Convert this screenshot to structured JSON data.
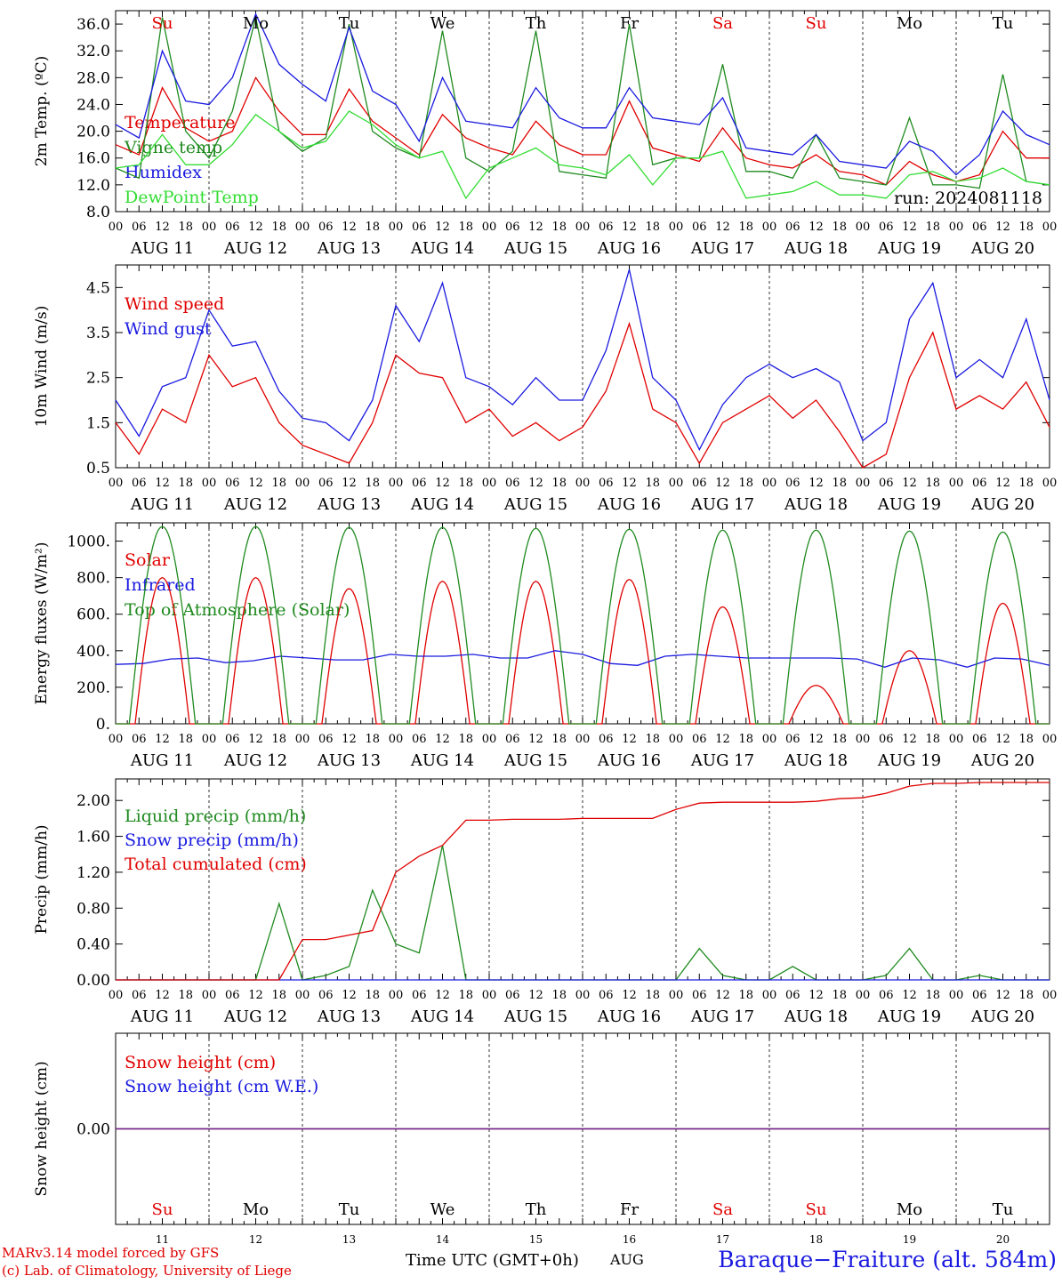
{
  "colors": {
    "red": "#e00000",
    "green": "#1f8a1f",
    "blue": "#1a1ae0",
    "lightgreen": "#33dd33",
    "purple": "#7a2a8a"
  },
  "x_axis": {
    "hour_labels": [
      "00",
      "06",
      "12",
      "18"
    ],
    "day_labels": [
      "AUG 11",
      "AUG 12",
      "AUG 13",
      "AUG 14",
      "AUG 15",
      "AUG 16",
      "AUG 17",
      "AUG 18",
      "AUG 19",
      "AUG 20"
    ],
    "last_label": "00"
  },
  "weekdays": [
    {
      "label": "Su",
      "color": "#e00000"
    },
    {
      "label": "Mo",
      "color": "#000000"
    },
    {
      "label": "Tu",
      "color": "#000000"
    },
    {
      "label": "We",
      "color": "#000000"
    },
    {
      "label": "Th",
      "color": "#000000"
    },
    {
      "label": "Fr",
      "color": "#000000"
    },
    {
      "label": "Sa",
      "color": "#e00000"
    },
    {
      "label": "Su",
      "color": "#e00000"
    },
    {
      "label": "Mo",
      "color": "#000000"
    },
    {
      "label": "Tu",
      "color": "#000000"
    }
  ],
  "day_numbers": [
    "11",
    "12",
    "13",
    "14",
    "15",
    "16",
    "17",
    "18",
    "19",
    "20"
  ],
  "footer": {
    "model": "MARv3.14 model forced by GFS",
    "lab": "(c) Lab. of Climatology, University of Liege",
    "time_label": "Time UTC (GMT+0h)",
    "month": "AUG",
    "station": "Baraque−Fraiture (alt. 584m)"
  },
  "chart_data": [
    {
      "type": "line",
      "ylabel": "2m Temp. (ºC)",
      "ylim": [
        8,
        38
      ],
      "ticks": [
        "8.0",
        "12.0",
        "16.0",
        "20.0",
        "24.0",
        "28.0",
        "32.0",
        "36.0"
      ],
      "annotation": "run: 2024081118",
      "x_hours": [
        0,
        6,
        12,
        18,
        24,
        30,
        36,
        42,
        48,
        54,
        60,
        66,
        72,
        78,
        84,
        90,
        96,
        102,
        108,
        114,
        120,
        126,
        132,
        138,
        144,
        150,
        156,
        162,
        168,
        174,
        180,
        186,
        192,
        198,
        204,
        210,
        216,
        222,
        228,
        234,
        240
      ],
      "series": [
        {
          "name": "Temperature",
          "color": "#e00000",
          "values": [
            18,
            16.5,
            26.5,
            20.5,
            18.5,
            20,
            28,
            23,
            19.5,
            19.5,
            26.3,
            21.5,
            19,
            16.5,
            22.5,
            19,
            17.5,
            16.5,
            21.5,
            18,
            16.5,
            16.5,
            24.5,
            17.5,
            16.5,
            15.5,
            20.5,
            16,
            15,
            14.5,
            16.5,
            14,
            13.5,
            12,
            15.5,
            13.5,
            12.5,
            13.5,
            20,
            16,
            16
          ]
        },
        {
          "name": "Vigne temp",
          "color": "#1f8a1f",
          "values": [
            14.5,
            13,
            37,
            20,
            16,
            23,
            37,
            20,
            17,
            19,
            36,
            20,
            17.5,
            16,
            35,
            16,
            14,
            17,
            35,
            14,
            13.5,
            13,
            36,
            15,
            16,
            16,
            30,
            14,
            14,
            13,
            19.5,
            13,
            12.5,
            12,
            22,
            12,
            12,
            11.5,
            28.5,
            12.5,
            12
          ]
        },
        {
          "name": "Humidex",
          "color": "#1a1ae0",
          "values": [
            21,
            19,
            32,
            24.5,
            24,
            28,
            37.5,
            30,
            27,
            24.5,
            35.5,
            26,
            24,
            18.5,
            28,
            21.5,
            21,
            20.5,
            26.5,
            22,
            20.5,
            20.5,
            26.5,
            22,
            21.5,
            21,
            25,
            17.5,
            17,
            16.5,
            19.5,
            15.5,
            15,
            14.5,
            18.5,
            17,
            13.5,
            16.5,
            23,
            19.5,
            18
          ]
        },
        {
          "name": "DewPoint Temp",
          "color": "#33dd33",
          "values": [
            14.5,
            15,
            19.5,
            15,
            15,
            18,
            22.5,
            20,
            17.5,
            18.5,
            23,
            21,
            18,
            16,
            17,
            10,
            14.5,
            16,
            17.5,
            15,
            14.5,
            13.5,
            16.5,
            12,
            16,
            16,
            17,
            10,
            10.5,
            11,
            12.5,
            10.5,
            10.5,
            10,
            13.5,
            14,
            12.5,
            13,
            14.5,
            12.5,
            12
          ]
        }
      ]
    },
    {
      "type": "line",
      "ylabel": "10m Wind (m/s)",
      "ylim": [
        0.5,
        5.0
      ],
      "ticks": [
        "0.5",
        "1.5",
        "2.5",
        "3.5",
        "4.5"
      ],
      "x_hours": [
        0,
        6,
        12,
        18,
        24,
        30,
        36,
        42,
        48,
        54,
        60,
        66,
        72,
        78,
        84,
        90,
        96,
        102,
        108,
        114,
        120,
        126,
        132,
        138,
        144,
        150,
        156,
        162,
        168,
        174,
        180,
        186,
        192,
        198,
        204,
        210,
        216,
        222,
        228,
        234,
        240
      ],
      "series": [
        {
          "name": "Wind speed",
          "color": "#e00000",
          "values": [
            1.5,
            0.8,
            1.8,
            1.5,
            3,
            2.3,
            2.5,
            1.5,
            1,
            0.8,
            0.6,
            1.5,
            3,
            2.6,
            2.5,
            1.5,
            1.8,
            1.2,
            1.5,
            1.1,
            1.4,
            2.2,
            3.7,
            1.8,
            1.5,
            0.6,
            1.5,
            1.8,
            2.1,
            1.6,
            2,
            1.3,
            0.5,
            0.8,
            2.5,
            3.5,
            1.8,
            2.1,
            1.8,
            2.4,
            1.4
          ]
        },
        {
          "name": "Wind gust",
          "color": "#1a1ae0",
          "values": [
            2,
            1.2,
            2.3,
            2.5,
            4,
            3.2,
            3.3,
            2.2,
            1.6,
            1.5,
            1.1,
            2,
            4.1,
            3.3,
            4.6,
            2.5,
            2.3,
            1.9,
            2.5,
            2.0,
            2,
            3.1,
            4.9,
            2.5,
            2.0,
            0.9,
            1.9,
            2.5,
            2.8,
            2.5,
            2.7,
            2.4,
            1.1,
            1.5,
            3.8,
            4.6,
            2.5,
            2.9,
            2.5,
            3.8,
            2
          ]
        }
      ]
    },
    {
      "type": "line",
      "ylabel": "Energy fluxes (W/m²)",
      "ylim": [
        0,
        1100
      ],
      "ticks": [
        "0.",
        "200.",
        "400.",
        "600.",
        "800.",
        "1000."
      ],
      "series": [
        {
          "name": "Solar",
          "color": "#e00000",
          "daily_peaks": [
            800,
            800,
            740,
            780,
            780,
            790,
            640,
            210,
            400,
            660
          ]
        },
        {
          "name": "Infrared",
          "color": "#1a1ae0",
          "values": [
            325,
            330,
            355,
            360,
            335,
            345,
            370,
            360,
            350,
            350,
            380,
            370,
            370,
            380,
            360,
            360,
            400,
            380,
            330,
            320,
            370,
            380,
            370,
            360,
            360,
            360,
            360,
            355,
            310,
            360,
            350,
            310,
            360,
            355,
            320
          ]
        },
        {
          "name": "Top of Atmosphere (Solar)",
          "color": "#1f8a1f",
          "daily_peaks": [
            1080,
            1080,
            1075,
            1075,
            1070,
            1065,
            1060,
            1060,
            1055,
            1050
          ]
        }
      ]
    },
    {
      "type": "line",
      "ylabel": "Precip (mm/h)",
      "ylim": [
        0,
        2.24
      ],
      "ticks": [
        "0.00",
        "0.40",
        "0.80",
        "1.20",
        "1.60",
        "2.00"
      ],
      "x_hours": [
        0,
        6,
        12,
        18,
        24,
        30,
        36,
        42,
        48,
        54,
        60,
        66,
        72,
        78,
        84,
        90,
        96,
        102,
        108,
        114,
        120,
        126,
        132,
        138,
        144,
        150,
        156,
        162,
        168,
        174,
        180,
        186,
        192,
        198,
        204,
        210,
        216,
        222,
        228,
        234,
        240
      ],
      "series": [
        {
          "name": "Liquid precip (mm/h)",
          "color": "#1f8a1f",
          "values": [
            0,
            0,
            0,
            0,
            0,
            0,
            0,
            0.85,
            0,
            0.05,
            0.15,
            1.0,
            0.4,
            0.3,
            1.5,
            0,
            0,
            0,
            0,
            0,
            0,
            0,
            0,
            0,
            0,
            0.35,
            0.05,
            0,
            0,
            0.15,
            0,
            0,
            0,
            0.05,
            0.35,
            0,
            0,
            0.05,
            0,
            0,
            0
          ]
        },
        {
          "name": "Snow precip (mm/h)",
          "color": "#1a1ae0",
          "values": [
            0,
            0,
            0,
            0,
            0,
            0,
            0,
            0,
            0,
            0,
            0,
            0,
            0,
            0,
            0,
            0,
            0,
            0,
            0,
            0,
            0,
            0,
            0,
            0,
            0,
            0,
            0,
            0,
            0,
            0,
            0,
            0,
            0,
            0,
            0,
            0,
            0,
            0,
            0,
            0,
            0
          ]
        },
        {
          "name": "Total cumulated (cm)",
          "color": "#e00000",
          "values": [
            0,
            0,
            0,
            0,
            0,
            0,
            0,
            0,
            0.45,
            0.45,
            0.5,
            0.55,
            1.2,
            1.38,
            1.5,
            1.78,
            1.78,
            1.79,
            1.79,
            1.79,
            1.8,
            1.8,
            1.8,
            1.8,
            1.9,
            1.97,
            1.98,
            1.98,
            1.98,
            1.98,
            1.99,
            2.02,
            2.03,
            2.08,
            2.16,
            2.19,
            2.19,
            2.2,
            2.2,
            2.2,
            2.2
          ]
        }
      ]
    },
    {
      "type": "line",
      "ylabel": "Snow height (cm)",
      "ylim": [
        -1,
        1
      ],
      "ticks": [
        "0.00"
      ],
      "series": [
        {
          "name": "Snow height (cm)",
          "color": "#e00000",
          "values": [
            0,
            0
          ]
        },
        {
          "name": "Snow height (cm W.E.)",
          "color": "#1a1ae0",
          "values": [
            0,
            0
          ]
        }
      ]
    }
  ]
}
